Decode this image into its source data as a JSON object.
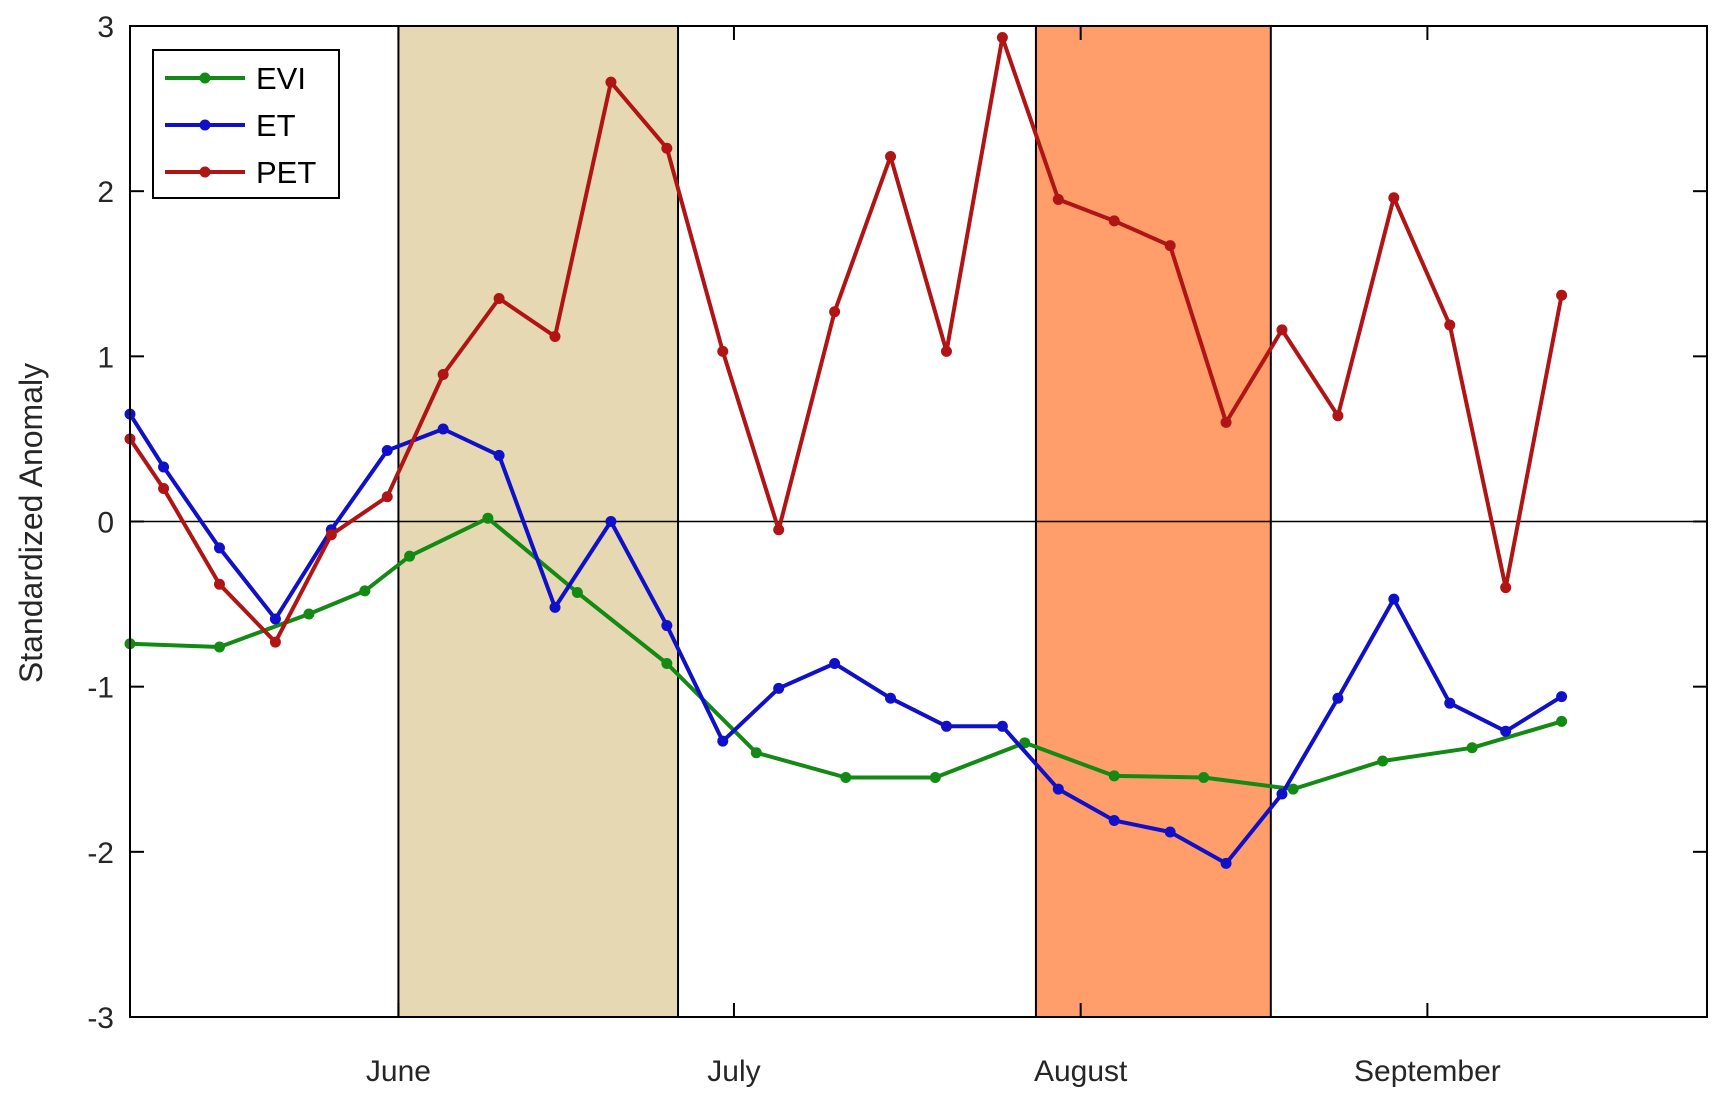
{
  "chart_data": {
    "type": "line",
    "title": "",
    "xlabel": "",
    "ylabel": "Standardized Anomaly",
    "ylim": [
      -3,
      3
    ],
    "yticks": [
      -3,
      -2,
      -1,
      0,
      1,
      2,
      3
    ],
    "xlim": [
      "2017-05-08",
      "2017-09-26"
    ],
    "xticks": [
      {
        "date": "2017-06-01",
        "label": "June"
      },
      {
        "date": "2017-07-01",
        "label": "July"
      },
      {
        "date": "2017-08-01",
        "label": "August"
      },
      {
        "date": "2017-09-01",
        "label": "September"
      }
    ],
    "zero_line": true,
    "grid": false,
    "legend_position": "top-left",
    "shaded_periods": [
      {
        "start": "2017-06-01",
        "end": "2017-06-26",
        "color": "#E6D8B2"
      },
      {
        "start": "2017-07-28",
        "end": "2017-08-18",
        "color": "#FF9E6A"
      }
    ],
    "series": [
      {
        "name": "EVI",
        "color": "#138A13",
        "points": [
          {
            "x": "2017-05-08",
            "y": -0.74
          },
          {
            "x": "2017-05-16",
            "y": -0.76
          },
          {
            "x": "2017-05-24",
            "y": -0.56
          },
          {
            "x": "2017-05-29",
            "y": -0.42
          },
          {
            "x": "2017-06-02",
            "y": -0.21
          },
          {
            "x": "2017-06-09",
            "y": 0.02
          },
          {
            "x": "2017-06-17",
            "y": -0.43
          },
          {
            "x": "2017-06-25",
            "y": -0.86
          },
          {
            "x": "2017-07-03",
            "y": -1.4
          },
          {
            "x": "2017-07-11",
            "y": -1.55
          },
          {
            "x": "2017-07-19",
            "y": -1.55
          },
          {
            "x": "2017-07-27",
            "y": -1.34
          },
          {
            "x": "2017-08-04",
            "y": -1.54
          },
          {
            "x": "2017-08-12",
            "y": -1.55
          },
          {
            "x": "2017-08-20",
            "y": -1.62
          },
          {
            "x": "2017-08-28",
            "y": -1.45
          },
          {
            "x": "2017-09-05",
            "y": -1.37
          },
          {
            "x": "2017-09-13",
            "y": -1.21
          }
        ]
      },
      {
        "name": "ET",
        "color": "#1010C8",
        "points": [
          {
            "x": "2017-05-08",
            "y": 0.65
          },
          {
            "x": "2017-05-11",
            "y": 0.33
          },
          {
            "x": "2017-05-16",
            "y": -0.16
          },
          {
            "x": "2017-05-21",
            "y": -0.59
          },
          {
            "x": "2017-05-26",
            "y": -0.05
          },
          {
            "x": "2017-05-31",
            "y": 0.43
          },
          {
            "x": "2017-06-05",
            "y": 0.56
          },
          {
            "x": "2017-06-10",
            "y": 0.4
          },
          {
            "x": "2017-06-15",
            "y": -0.52
          },
          {
            "x": "2017-06-20",
            "y": 0.0
          },
          {
            "x": "2017-06-25",
            "y": -0.63
          },
          {
            "x": "2017-06-30",
            "y": -1.33
          },
          {
            "x": "2017-07-05",
            "y": -1.01
          },
          {
            "x": "2017-07-10",
            "y": -0.86
          },
          {
            "x": "2017-07-15",
            "y": -1.07
          },
          {
            "x": "2017-07-20",
            "y": -1.24
          },
          {
            "x": "2017-07-25",
            "y": -1.24
          },
          {
            "x": "2017-07-30",
            "y": -1.62
          },
          {
            "x": "2017-08-04",
            "y": -1.81
          },
          {
            "x": "2017-08-09",
            "y": -1.88
          },
          {
            "x": "2017-08-14",
            "y": -2.07
          },
          {
            "x": "2017-08-19",
            "y": -1.65
          },
          {
            "x": "2017-08-24",
            "y": -1.07
          },
          {
            "x": "2017-08-29",
            "y": -0.47
          },
          {
            "x": "2017-09-03",
            "y": -1.1
          },
          {
            "x": "2017-09-08",
            "y": -1.27
          },
          {
            "x": "2017-09-13",
            "y": -1.06
          }
        ]
      },
      {
        "name": "PET",
        "color": "#B01414",
        "points": [
          {
            "x": "2017-05-08",
            "y": 0.5
          },
          {
            "x": "2017-05-11",
            "y": 0.2
          },
          {
            "x": "2017-05-16",
            "y": -0.38
          },
          {
            "x": "2017-05-21",
            "y": -0.73
          },
          {
            "x": "2017-05-26",
            "y": -0.08
          },
          {
            "x": "2017-05-31",
            "y": 0.15
          },
          {
            "x": "2017-06-05",
            "y": 0.89
          },
          {
            "x": "2017-06-10",
            "y": 1.35
          },
          {
            "x": "2017-06-15",
            "y": 1.12
          },
          {
            "x": "2017-06-20",
            "y": 2.66
          },
          {
            "x": "2017-06-25",
            "y": 2.26
          },
          {
            "x": "2017-06-30",
            "y": 1.03
          },
          {
            "x": "2017-07-05",
            "y": -0.05
          },
          {
            "x": "2017-07-10",
            "y": 1.27
          },
          {
            "x": "2017-07-15",
            "y": 2.21
          },
          {
            "x": "2017-07-20",
            "y": 1.03
          },
          {
            "x": "2017-07-25",
            "y": 2.93
          },
          {
            "x": "2017-07-30",
            "y": 1.95
          },
          {
            "x": "2017-08-04",
            "y": 1.82
          },
          {
            "x": "2017-08-09",
            "y": 1.67
          },
          {
            "x": "2017-08-14",
            "y": 0.6
          },
          {
            "x": "2017-08-19",
            "y": 1.16
          },
          {
            "x": "2017-08-24",
            "y": 0.64
          },
          {
            "x": "2017-08-29",
            "y": 1.96
          },
          {
            "x": "2017-09-03",
            "y": 1.19
          },
          {
            "x": "2017-09-08",
            "y": -0.4
          },
          {
            "x": "2017-09-13",
            "y": 1.37
          }
        ]
      }
    ]
  }
}
